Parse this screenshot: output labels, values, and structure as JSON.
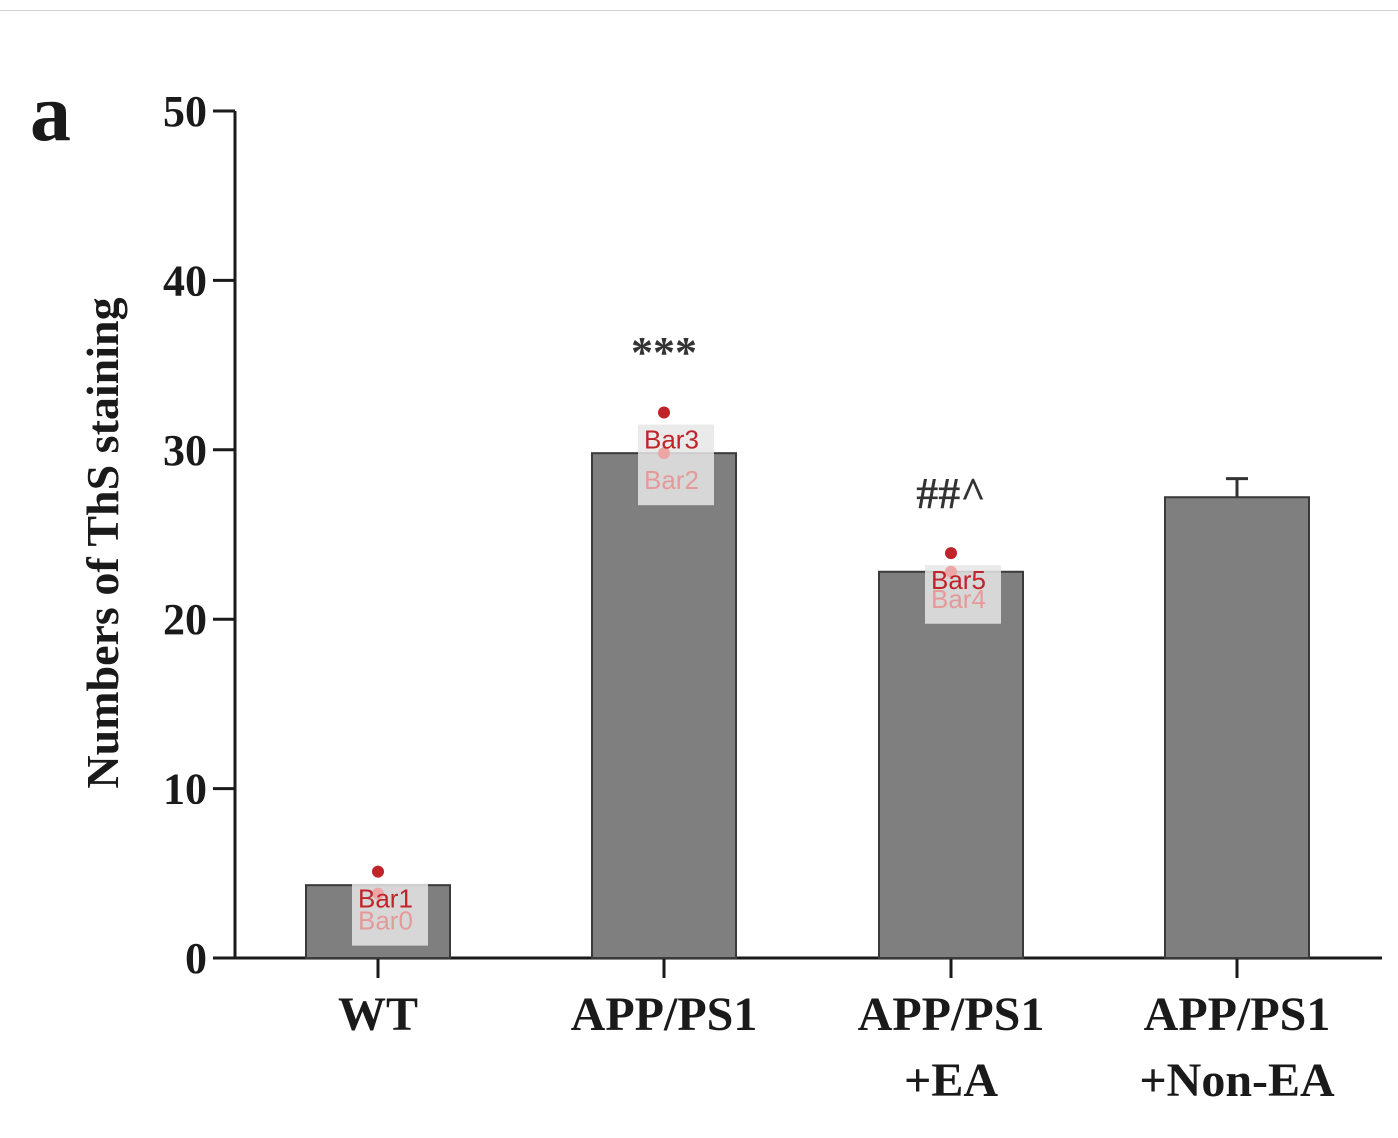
{
  "panel_label": "a",
  "chart_data": {
    "type": "bar",
    "ylabel": "Numbers of ThS staining",
    "xlabel": "",
    "ylim": [
      0,
      50
    ],
    "yticks": [
      0,
      10,
      20,
      30,
      40,
      50
    ],
    "categories": [
      [
        "WT"
      ],
      [
        "APP/PS1"
      ],
      [
        "APP/PS1",
        "+EA"
      ],
      [
        "APP/PS1",
        "+Non-EA"
      ]
    ],
    "values": [
      4.3,
      29.8,
      22.8,
      27.2
    ],
    "error": [
      0,
      0,
      0,
      1.1
    ],
    "bar_color": "#7f7f7f",
    "significance": [
      "",
      "***",
      "##^",
      ""
    ],
    "annotation_markers": [
      {
        "label": "Bar0",
        "value": 3.8,
        "category_index": 0,
        "faint": true
      },
      {
        "label": "Bar1",
        "value": 5.1,
        "category_index": 0,
        "faint": false
      },
      {
        "label": "Bar2",
        "value": 29.8,
        "category_index": 1,
        "faint": true
      },
      {
        "label": "Bar3",
        "value": 32.2,
        "category_index": 1,
        "faint": false
      },
      {
        "label": "Bar4",
        "value": 22.8,
        "category_index": 2,
        "faint": true
      },
      {
        "label": "Bar5",
        "value": 23.9,
        "category_index": 2,
        "faint": false
      }
    ]
  }
}
